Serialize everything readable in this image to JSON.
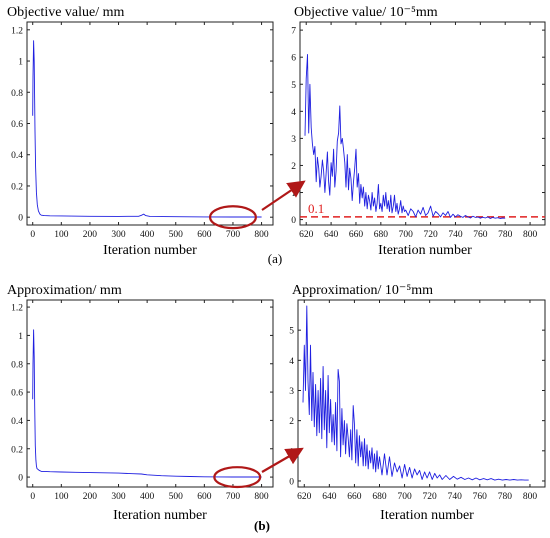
{
  "panel_labels": {
    "a": "(a)",
    "b": "(b)"
  },
  "colors": {
    "series": "#1f1fe0",
    "annotation": "#b01818",
    "threshold": "#e02020",
    "axis": "#222222"
  },
  "chart_data": [
    {
      "id": "a-left",
      "type": "line",
      "title": "Objective value/ mm",
      "xlabel": "Iteration number",
      "ylabel": "",
      "xlim": [
        -20,
        840
      ],
      "ylim": [
        -0.05,
        1.25
      ],
      "xticks": [
        0,
        100,
        200,
        300,
        400,
        500,
        600,
        700,
        800
      ],
      "yticks": [
        0,
        0.2,
        0.4,
        0.6,
        0.8,
        1,
        1.2
      ],
      "ytick_labels": [
        "0",
        "0.2",
        "0.4",
        "0.6",
        "0.8",
        "1",
        "1.2"
      ],
      "grid": false,
      "series": [
        {
          "values_x": [
            0,
            1,
            3,
            5,
            8,
            10,
            13,
            16,
            20,
            25,
            30,
            40,
            60,
            100,
            200,
            300,
            370,
            380,
            388,
            395,
            410,
            500,
            600,
            700,
            800
          ],
          "values_y": [
            0.65,
            0.9,
            1.13,
            1.0,
            0.55,
            0.32,
            0.16,
            0.08,
            0.04,
            0.02,
            0.013,
            0.01,
            0.009,
            0.008,
            0.006,
            0.005,
            0.006,
            0.012,
            0.02,
            0.01,
            0.005,
            0.003,
            0.002,
            0.001,
            0.001
          ]
        }
      ],
      "annotations": [
        {
          "type": "ellipse",
          "x": 700,
          "y": 0.0,
          "rx": 80,
          "ry": 0.07
        }
      ]
    },
    {
      "id": "a-right",
      "type": "line",
      "title": "Objective value/ 10⁻⁵mm",
      "xlabel": "Iteration number",
      "ylabel": "",
      "xlim": [
        615,
        812
      ],
      "ylim": [
        -0.2,
        7.3
      ],
      "xticks": [
        620,
        640,
        660,
        680,
        700,
        720,
        740,
        760,
        780,
        800
      ],
      "yticks": [
        0,
        1,
        2,
        3,
        4,
        5,
        6,
        7
      ],
      "grid": false,
      "threshold": {
        "y": 0.1,
        "label": "0.1"
      },
      "series": [
        {
          "values_x": [
            619,
            620,
            621,
            622,
            623,
            624,
            625,
            626,
            627,
            628,
            629,
            630,
            631,
            632,
            633,
            634,
            635,
            636,
            637,
            638,
            639,
            640,
            641,
            642,
            643,
            644,
            645,
            646,
            647,
            648,
            649,
            650,
            651,
            652,
            653,
            654,
            655,
            656,
            657,
            658,
            659,
            660,
            661,
            662,
            663,
            664,
            665,
            666,
            667,
            668,
            669,
            670,
            671,
            672,
            673,
            674,
            675,
            676,
            677,
            678,
            679,
            680,
            681,
            682,
            683,
            684,
            685,
            686,
            687,
            688,
            689,
            690,
            691,
            692,
            693,
            694,
            695,
            696,
            697,
            698,
            699,
            700,
            702,
            704,
            706,
            708,
            710,
            712,
            714,
            716,
            718,
            720,
            722,
            724,
            726,
            728,
            730,
            732,
            734,
            736,
            738,
            740,
            742,
            744,
            746,
            748,
            750,
            752,
            754,
            756,
            758,
            760,
            762,
            764,
            766,
            768,
            770,
            772,
            774,
            776,
            778,
            780
          ],
          "values_y": [
            3.1,
            5.2,
            6.1,
            3.2,
            5.0,
            3.4,
            2.8,
            2.4,
            2.7,
            1.4,
            2.3,
            1.9,
            1.2,
            1.6,
            2.2,
            1.8,
            1.0,
            1.7,
            2.5,
            1.4,
            0.9,
            2.1,
            1.6,
            2.6,
            1.2,
            1.8,
            2.9,
            3.2,
            4.2,
            2.8,
            3.0,
            2.6,
            2.1,
            1.2,
            2.4,
            1.1,
            1.9,
            1.5,
            0.7,
            1.4,
            1.9,
            2.6,
            1.2,
            1.7,
            0.6,
            1.3,
            0.8,
            1.2,
            0.5,
            1.0,
            0.4,
            0.9,
            0.7,
            0.35,
            1.0,
            0.5,
            0.8,
            0.3,
            0.6,
            1.3,
            0.4,
            0.6,
            0.3,
            0.9,
            0.5,
            1.0,
            0.4,
            0.7,
            0.3,
            0.9,
            0.25,
            0.5,
            0.9,
            0.3,
            0.6,
            0.2,
            0.4,
            0.7,
            0.25,
            0.5,
            0.3,
            0.35,
            0.15,
            0.4,
            0.3,
            0.1,
            0.35,
            0.2,
            0.45,
            0.15,
            0.25,
            0.5,
            0.12,
            0.3,
            0.22,
            0.1,
            0.25,
            0.15,
            0.3,
            0.08,
            0.2,
            0.1,
            0.18,
            0.12,
            0.08,
            0.15,
            0.1,
            0.06,
            0.12,
            0.08,
            0.1,
            0.05,
            0.09,
            0.06,
            0.1,
            0.04,
            0.08,
            0.05,
            0.07,
            0.04,
            0.06,
            0.05
          ]
        }
      ]
    },
    {
      "id": "b-left",
      "type": "line",
      "title": "Approximation/ mm",
      "xlabel": "Iteration number",
      "ylabel": "",
      "xlim": [
        -20,
        840
      ],
      "ylim": [
        -0.07,
        1.25
      ],
      "xticks": [
        0,
        100,
        200,
        300,
        400,
        500,
        600,
        700,
        800
      ],
      "yticks": [
        0,
        0.2,
        0.4,
        0.6,
        0.8,
        1,
        1.2
      ],
      "ytick_labels": [
        "0",
        "0.2",
        "0.4",
        "0.6",
        "0.8",
        "1",
        "1.2"
      ],
      "grid": false,
      "series": [
        {
          "values_x": [
            0,
            1,
            3,
            5,
            7,
            9,
            11,
            13,
            15,
            18,
            21,
            25,
            30,
            40,
            60,
            100,
            150,
            200,
            250,
            300,
            350,
            380,
            400,
            450,
            500,
            550,
            600,
            650,
            700,
            800
          ],
          "values_y": [
            0.55,
            0.8,
            1.04,
            0.85,
            0.5,
            0.22,
            0.12,
            0.08,
            0.06,
            0.055,
            0.05,
            0.045,
            0.04,
            0.04,
            0.038,
            0.036,
            0.034,
            0.032,
            0.03,
            0.028,
            0.024,
            0.022,
            0.016,
            0.01,
            0.006,
            0.004,
            0.002,
            0.001,
            0.0005,
            0.0005
          ]
        }
      ],
      "annotations": [
        {
          "type": "ellipse",
          "x": 715,
          "y": 0.0,
          "rx": 80,
          "ry": 0.07
        }
      ]
    },
    {
      "id": "b-right",
      "type": "line",
      "title": "Approximation/ 10⁻⁵mm",
      "xlabel": "Iteration number",
      "ylabel": "",
      "xlim": [
        615,
        812
      ],
      "ylim": [
        -0.2,
        6.0
      ],
      "xticks": [
        620,
        640,
        660,
        680,
        700,
        720,
        740,
        760,
        780,
        800
      ],
      "yticks": [
        0,
        1,
        2,
        3,
        4,
        5
      ],
      "grid": false,
      "series": [
        {
          "values_x": [
            619,
            620,
            621,
            622,
            623,
            624,
            625,
            626,
            627,
            628,
            629,
            630,
            631,
            632,
            633,
            634,
            635,
            636,
            637,
            638,
            639,
            640,
            641,
            642,
            643,
            644,
            645,
            646,
            647,
            648,
            649,
            650,
            651,
            652,
            653,
            654,
            655,
            656,
            657,
            658,
            659,
            660,
            661,
            662,
            663,
            664,
            665,
            666,
            667,
            668,
            669,
            670,
            671,
            672,
            673,
            674,
            675,
            676,
            677,
            678,
            679,
            680,
            682,
            684,
            686,
            688,
            690,
            692,
            694,
            696,
            698,
            700,
            702,
            704,
            706,
            708,
            710,
            712,
            714,
            716,
            718,
            720,
            722,
            724,
            726,
            728,
            730,
            733,
            736,
            739,
            742,
            745,
            748,
            751,
            754,
            757,
            760,
            763,
            766,
            769,
            772,
            775,
            778,
            781,
            784,
            787,
            790,
            793,
            796,
            799
          ],
          "values_y": [
            2.6,
            4.5,
            3.0,
            5.8,
            3.3,
            2.2,
            4.5,
            2.0,
            3.6,
            1.8,
            3.2,
            1.5,
            3.0,
            1.6,
            3.4,
            1.4,
            3.8,
            1.7,
            3.0,
            1.1,
            3.5,
            1.6,
            2.7,
            1.3,
            2.2,
            1.2,
            2.6,
            1.0,
            3.7,
            3.3,
            0.8,
            2.4,
            1.2,
            2.0,
            0.9,
            1.9,
            1.4,
            0.8,
            1.7,
            0.7,
            2.5,
            1.9,
            0.6,
            1.7,
            0.5,
            1.5,
            0.8,
            1.3,
            0.5,
            1.4,
            0.5,
            1.2,
            0.4,
            1.0,
            0.6,
            1.1,
            0.4,
            0.9,
            0.3,
            1.0,
            0.4,
            0.8,
            0.2,
            0.9,
            0.2,
            0.8,
            0.15,
            0.6,
            0.3,
            0.5,
            0.1,
            0.55,
            0.15,
            0.45,
            0.1,
            0.4,
            0.2,
            0.35,
            0.05,
            0.3,
            0.1,
            0.3,
            0.05,
            0.25,
            0.1,
            0.2,
            0.05,
            0.18,
            0.05,
            0.15,
            0.06,
            0.12,
            0.05,
            0.1,
            0.04,
            0.1,
            0.04,
            0.08,
            0.04,
            0.08,
            0.03,
            0.06,
            0.03,
            0.05,
            0.03,
            0.05,
            0.03,
            0.04,
            0.03,
            0.03
          ]
        }
      ]
    }
  ]
}
